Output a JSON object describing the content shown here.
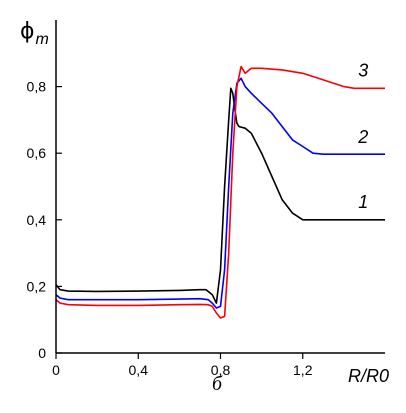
{
  "chart_data": {
    "type": "line",
    "ylabel": {
      "main": "ϕ",
      "sub": "m"
    },
    "xlabel": "R/R0",
    "panel_label": "б",
    "xlim": [
      0,
      1.6
    ],
    "ylim": [
      0,
      1.0
    ],
    "x_ticks": [
      {
        "value": 0,
        "label": "0"
      },
      {
        "value": 0.4,
        "label": "0,4"
      },
      {
        "value": 0.8,
        "label": "0,8"
      },
      {
        "value": 1.2,
        "label": "1,2"
      }
    ],
    "y_ticks": [
      {
        "value": 0,
        "label": "0"
      },
      {
        "value": 0.2,
        "label": "0,2"
      },
      {
        "value": 0.4,
        "label": "0,4"
      },
      {
        "value": 0.6,
        "label": "0,6"
      },
      {
        "value": 0.8,
        "label": "0,8"
      }
    ],
    "grid": false,
    "series": [
      {
        "label": "1",
        "color": "#000000",
        "label_at": [
          1.47,
          0.435
        ],
        "points": [
          [
            0,
            0.205
          ],
          [
            0.02,
            0.19
          ],
          [
            0.06,
            0.186
          ],
          [
            0.2,
            0.185
          ],
          [
            0.4,
            0.186
          ],
          [
            0.6,
            0.188
          ],
          [
            0.7,
            0.19
          ],
          [
            0.73,
            0.19
          ],
          [
            0.76,
            0.175
          ],
          [
            0.78,
            0.15
          ],
          [
            0.8,
            0.25
          ],
          [
            0.82,
            0.5
          ],
          [
            0.84,
            0.7
          ],
          [
            0.85,
            0.795
          ],
          [
            0.86,
            0.78
          ],
          [
            0.87,
            0.73
          ],
          [
            0.88,
            0.69
          ],
          [
            0.89,
            0.68
          ],
          [
            0.92,
            0.675
          ],
          [
            0.95,
            0.66
          ],
          [
            1.0,
            0.6
          ],
          [
            1.05,
            0.53
          ],
          [
            1.1,
            0.46
          ],
          [
            1.15,
            0.42
          ],
          [
            1.2,
            0.4
          ],
          [
            1.3,
            0.4
          ],
          [
            1.6,
            0.4
          ]
        ]
      },
      {
        "label": "2",
        "color": "#0000ff",
        "label_at": [
          1.47,
          0.63
        ],
        "points": [
          [
            0,
            0.175
          ],
          [
            0.02,
            0.165
          ],
          [
            0.06,
            0.16
          ],
          [
            0.2,
            0.16
          ],
          [
            0.4,
            0.16
          ],
          [
            0.6,
            0.162
          ],
          [
            0.7,
            0.163
          ],
          [
            0.74,
            0.16
          ],
          [
            0.76,
            0.15
          ],
          [
            0.78,
            0.135
          ],
          [
            0.8,
            0.14
          ],
          [
            0.82,
            0.25
          ],
          [
            0.84,
            0.5
          ],
          [
            0.86,
            0.72
          ],
          [
            0.88,
            0.81
          ],
          [
            0.9,
            0.825
          ],
          [
            0.92,
            0.8
          ],
          [
            0.95,
            0.78
          ],
          [
            1.0,
            0.75
          ],
          [
            1.05,
            0.72
          ],
          [
            1.1,
            0.68
          ],
          [
            1.15,
            0.64
          ],
          [
            1.2,
            0.62
          ],
          [
            1.25,
            0.6
          ],
          [
            1.3,
            0.597
          ],
          [
            1.6,
            0.597
          ]
        ]
      },
      {
        "label": "3",
        "color": "#ff0000",
        "label_at": [
          1.47,
          0.83
        ],
        "points": [
          [
            0,
            0.16
          ],
          [
            0.02,
            0.15
          ],
          [
            0.06,
            0.145
          ],
          [
            0.2,
            0.143
          ],
          [
            0.4,
            0.143
          ],
          [
            0.6,
            0.145
          ],
          [
            0.7,
            0.146
          ],
          [
            0.74,
            0.145
          ],
          [
            0.76,
            0.14
          ],
          [
            0.78,
            0.12
          ],
          [
            0.8,
            0.105
          ],
          [
            0.82,
            0.11
          ],
          [
            0.84,
            0.3
          ],
          [
            0.86,
            0.6
          ],
          [
            0.88,
            0.8
          ],
          [
            0.9,
            0.86
          ],
          [
            0.92,
            0.84
          ],
          [
            0.95,
            0.855
          ],
          [
            1.0,
            0.855
          ],
          [
            1.1,
            0.85
          ],
          [
            1.2,
            0.84
          ],
          [
            1.3,
            0.82
          ],
          [
            1.4,
            0.8
          ],
          [
            1.45,
            0.795
          ],
          [
            1.6,
            0.795
          ]
        ]
      }
    ]
  }
}
